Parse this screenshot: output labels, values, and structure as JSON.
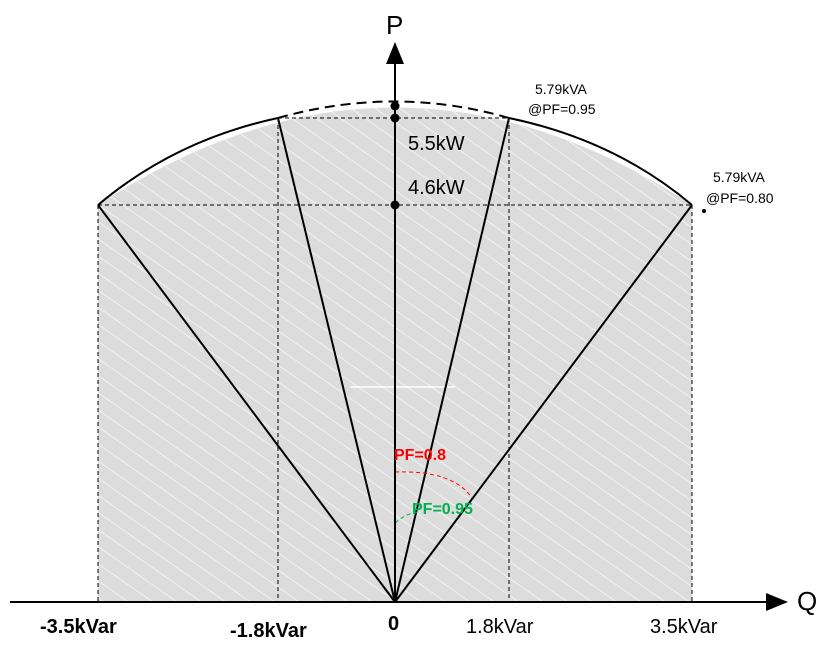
{
  "axes": {
    "vertical_label": "P",
    "horizontal_label": "Q"
  },
  "q_ticks": [
    {
      "text": "-3.5kVar",
      "value": -3.5,
      "weight": "bold"
    },
    {
      "text": "-1.8kVar",
      "value": -1.8,
      "weight": "bold"
    },
    {
      "text": "0",
      "value": 0,
      "weight": "bold"
    },
    {
      "text": "1.8kVar",
      "value": 1.8,
      "weight": "plain"
    },
    {
      "text": "3.5kVar",
      "value": 3.5,
      "weight": "plain"
    }
  ],
  "p_labels": {
    "p55": "5.5kW",
    "p46": "4.6kW"
  },
  "points": {
    "pf095_kva": "5.79kVA",
    "pf095_pf": "@PF=0.95",
    "pf080_kva": "5.79kVA",
    "pf080_pf": "@PF=0.80"
  },
  "angles": {
    "pf08": "PF=0.8",
    "pf095": "PF=0.95"
  },
  "colors": {
    "region_fill": "#dcdcdc",
    "hatch": "#f4f4f4",
    "pf08": "#ff0000",
    "pf095": "#00b050",
    "line": "#000000"
  }
}
